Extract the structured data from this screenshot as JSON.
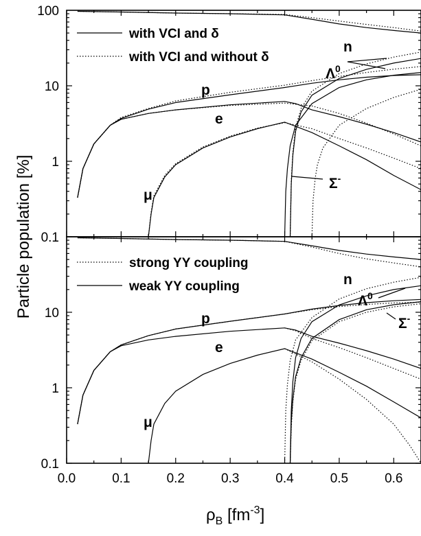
{
  "chart_data": [
    {
      "type": "line",
      "panel": "top",
      "title": "",
      "xlabel": "ρ_B [fm^-3]",
      "ylabel": "Particle population [%]",
      "xlim": [
        0.0,
        0.65
      ],
      "ylim": [
        0.1,
        100
      ],
      "yscale": "log",
      "legend_position": "top-left",
      "legend": [
        {
          "label": "with VCI and δ",
          "style": "solid"
        },
        {
          "label": "with VCI and without δ",
          "style": "dotted"
        }
      ],
      "annotations": {
        "n": "n",
        "lambda": "Λ",
        "lambda_sup": "0",
        "p": "p",
        "e": "e",
        "mu": "μ",
        "sigma": "Σ",
        "sigma_sup": "-"
      },
      "series": [
        {
          "name": "n",
          "style": "solid",
          "x": [
            0.02,
            0.1,
            0.2,
            0.3,
            0.4,
            0.45,
            0.5,
            0.55,
            0.6,
            0.65
          ],
          "y": [
            97,
            95,
            92,
            90,
            87,
            76,
            66,
            59,
            54,
            50
          ]
        },
        {
          "name": "n",
          "style": "dotted",
          "x": [
            0.02,
            0.1,
            0.2,
            0.3,
            0.4,
            0.45,
            0.5,
            0.55,
            0.6,
            0.65
          ],
          "y": [
            97,
            95,
            92,
            90,
            88,
            80,
            72,
            65,
            59,
            53
          ]
        },
        {
          "name": "p",
          "style": "solid",
          "x": [
            0.02,
            0.03,
            0.05,
            0.08,
            0.1,
            0.15,
            0.2,
            0.3,
            0.4,
            0.45,
            0.5,
            0.55,
            0.6,
            0.65
          ],
          "y": [
            0.33,
            0.8,
            1.7,
            3.0,
            3.7,
            4.9,
            6.0,
            7.6,
            9.5,
            10.8,
            12.0,
            13.0,
            13.7,
            14.0
          ]
        },
        {
          "name": "p",
          "style": "dotted",
          "x": [
            0.02,
            0.03,
            0.05,
            0.08,
            0.1,
            0.15,
            0.2,
            0.3,
            0.4,
            0.45,
            0.5,
            0.55,
            0.6,
            0.65
          ],
          "y": [
            0.33,
            0.8,
            1.7,
            3.0,
            3.8,
            5.0,
            6.3,
            8.2,
            10.2,
            11.7,
            13.3,
            15.0,
            16.6,
            18.0
          ]
        },
        {
          "name": "e",
          "style": "solid",
          "x": [
            0.02,
            0.03,
            0.05,
            0.08,
            0.1,
            0.15,
            0.2,
            0.3,
            0.4,
            0.42,
            0.45,
            0.5,
            0.55,
            0.6,
            0.65
          ],
          "y": [
            0.33,
            0.8,
            1.7,
            3.0,
            3.6,
            4.3,
            4.8,
            5.6,
            6.2,
            5.8,
            4.8,
            3.9,
            3.1,
            2.4,
            1.8
          ]
        },
        {
          "name": "e",
          "style": "dotted",
          "x": [
            0.02,
            0.03,
            0.05,
            0.08,
            0.1,
            0.15,
            0.2,
            0.3,
            0.4,
            0.45,
            0.5,
            0.55,
            0.6,
            0.65
          ],
          "y": [
            0.33,
            0.8,
            1.7,
            3.0,
            3.6,
            4.3,
            4.8,
            5.5,
            5.9,
            5.4,
            4.3,
            3.2,
            2.3,
            1.6
          ]
        },
        {
          "name": "μ",
          "style": "solid",
          "x": [
            0.15,
            0.155,
            0.16,
            0.18,
            0.2,
            0.25,
            0.3,
            0.35,
            0.4,
            0.45,
            0.5,
            0.55,
            0.6,
            0.65
          ],
          "y": [
            0.1,
            0.2,
            0.33,
            0.62,
            0.9,
            1.5,
            2.1,
            2.7,
            3.3,
            2.4,
            1.6,
            1.05,
            0.65,
            0.42
          ]
        },
        {
          "name": "μ",
          "style": "dotted",
          "x": [
            0.15,
            0.155,
            0.16,
            0.18,
            0.2,
            0.25,
            0.3,
            0.35,
            0.4,
            0.45,
            0.5,
            0.55,
            0.6,
            0.65
          ],
          "y": [
            0.1,
            0.21,
            0.35,
            0.65,
            0.93,
            1.55,
            2.15,
            2.75,
            3.25,
            2.7,
            2.0,
            1.5,
            1.1,
            0.8
          ]
        },
        {
          "name": "Λ0",
          "style": "solid",
          "x": [
            0.41,
            0.412,
            0.415,
            0.42,
            0.43,
            0.45,
            0.5,
            0.55,
            0.6,
            0.65
          ],
          "y": [
            0.1,
            0.5,
            1.2,
            2.5,
            4.5,
            7.5,
            12.5,
            16.5,
            20.0,
            23.0
          ]
        },
        {
          "name": "Λ0",
          "style": "dotted",
          "x": [
            0.41,
            0.412,
            0.415,
            0.42,
            0.43,
            0.45,
            0.5,
            0.55,
            0.6,
            0.65
          ],
          "y": [
            0.1,
            0.55,
            1.3,
            2.8,
            5.0,
            8.5,
            14.5,
            19.5,
            24.0,
            28.0
          ]
        },
        {
          "name": "Σ-",
          "style": "solid",
          "x": [
            0.4,
            0.402,
            0.405,
            0.41,
            0.42,
            0.45,
            0.5,
            0.55,
            0.6,
            0.65
          ],
          "y": [
            0.1,
            0.4,
            0.8,
            1.6,
            3.0,
            5.8,
            9.5,
            12.0,
            13.8,
            15.0
          ]
        },
        {
          "name": "Σ-",
          "style": "dotted",
          "x": [
            0.45,
            0.452,
            0.456,
            0.46,
            0.47,
            0.5,
            0.55,
            0.6,
            0.65
          ],
          "y": [
            0.1,
            0.3,
            0.6,
            0.9,
            1.5,
            3.0,
            5.0,
            7.0,
            9.0
          ]
        }
      ]
    },
    {
      "type": "line",
      "panel": "bottom",
      "title": "",
      "xlabel": "ρ_B [fm^-3]",
      "ylabel": "Particle population [%]",
      "xlim": [
        0.0,
        0.65
      ],
      "ylim": [
        0.1,
        100
      ],
      "yscale": "log",
      "legend_position": "top-left",
      "legend": [
        {
          "label": "strong YY coupling",
          "style": "dotted"
        },
        {
          "label": "weak YY coupling",
          "style": "solid"
        }
      ],
      "annotations": {
        "n": "n",
        "lambda": "Λ",
        "lambda_sup": "0",
        "p": "p",
        "e": "e",
        "mu": "μ",
        "sigma": "Σ",
        "sigma_sup": "-"
      },
      "series": [
        {
          "name": "n",
          "style": "solid",
          "x": [
            0.02,
            0.1,
            0.2,
            0.3,
            0.4,
            0.45,
            0.5,
            0.55,
            0.6,
            0.65
          ],
          "y": [
            97,
            95,
            92,
            90,
            87,
            76,
            66,
            59,
            54,
            50
          ]
        },
        {
          "name": "n",
          "style": "dotted",
          "x": [
            0.02,
            0.1,
            0.2,
            0.3,
            0.4,
            0.45,
            0.5,
            0.55,
            0.6,
            0.65
          ],
          "y": [
            97,
            95,
            92,
            90,
            87,
            73,
            60,
            51,
            45,
            40
          ]
        },
        {
          "name": "p",
          "style": "solid",
          "x": [
            0.02,
            0.03,
            0.05,
            0.08,
            0.1,
            0.15,
            0.2,
            0.3,
            0.4,
            0.45,
            0.5,
            0.55,
            0.6,
            0.65
          ],
          "y": [
            0.33,
            0.8,
            1.7,
            3.0,
            3.7,
            4.9,
            6.0,
            7.6,
            9.5,
            11.0,
            12.3,
            13.4,
            14.2,
            14.8
          ]
        },
        {
          "name": "p",
          "style": "dotted",
          "x": [
            0.02,
            0.03,
            0.05,
            0.08,
            0.1,
            0.15,
            0.2,
            0.3,
            0.4,
            0.45,
            0.5,
            0.55,
            0.6,
            0.65
          ],
          "y": [
            0.33,
            0.8,
            1.7,
            3.0,
            3.7,
            4.9,
            6.0,
            7.6,
            9.5,
            10.8,
            11.9,
            12.7,
            13.3,
            13.6
          ]
        },
        {
          "name": "e",
          "style": "solid",
          "x": [
            0.02,
            0.03,
            0.05,
            0.08,
            0.1,
            0.15,
            0.2,
            0.3,
            0.4,
            0.42,
            0.45,
            0.5,
            0.55,
            0.6,
            0.65
          ],
          "y": [
            0.33,
            0.8,
            1.7,
            3.0,
            3.6,
            4.3,
            4.8,
            5.6,
            6.2,
            5.8,
            4.8,
            3.9,
            3.1,
            2.4,
            1.8
          ]
        },
        {
          "name": "e",
          "style": "dotted",
          "x": [
            0.4,
            0.42,
            0.45,
            0.5,
            0.55,
            0.6,
            0.65
          ],
          "y": [
            6.2,
            5.7,
            4.5,
            3.4,
            2.5,
            1.8,
            1.3
          ]
        },
        {
          "name": "μ",
          "style": "solid",
          "x": [
            0.15,
            0.155,
            0.16,
            0.18,
            0.2,
            0.25,
            0.3,
            0.35,
            0.4,
            0.45,
            0.5,
            0.55,
            0.6,
            0.65
          ],
          "y": [
            0.1,
            0.2,
            0.33,
            0.62,
            0.9,
            1.5,
            2.1,
            2.7,
            3.3,
            2.4,
            1.6,
            1.05,
            0.65,
            0.4
          ]
        },
        {
          "name": "μ",
          "style": "dotted",
          "x": [
            0.4,
            0.45,
            0.5,
            0.55,
            0.6,
            0.63,
            0.65
          ],
          "y": [
            3.3,
            2.2,
            1.3,
            0.7,
            0.33,
            0.17,
            0.1
          ]
        },
        {
          "name": "Λ0",
          "style": "solid",
          "x": [
            0.41,
            0.412,
            0.415,
            0.42,
            0.43,
            0.45,
            0.5,
            0.55,
            0.6,
            0.65
          ],
          "y": [
            0.1,
            0.5,
            1.2,
            2.5,
            4.5,
            7.5,
            12.5,
            16.5,
            20.0,
            22.5
          ]
        },
        {
          "name": "Λ0",
          "style": "dotted",
          "x": [
            0.4,
            0.402,
            0.405,
            0.41,
            0.42,
            0.45,
            0.5,
            0.55,
            0.6,
            0.65
          ],
          "y": [
            0.1,
            0.5,
            1.1,
            2.3,
            4.3,
            8.5,
            15.0,
            20.5,
            25.0,
            29.0
          ]
        },
        {
          "name": "Σ-",
          "style": "solid",
          "x": [
            0.41,
            0.412,
            0.415,
            0.42,
            0.43,
            0.45,
            0.5,
            0.55,
            0.6,
            0.65
          ],
          "y": [
            0.1,
            0.35,
            0.7,
            1.4,
            2.5,
            4.5,
            8.0,
            10.8,
            12.6,
            13.8
          ]
        },
        {
          "name": "Σ-",
          "style": "dotted",
          "x": [
            0.41,
            0.412,
            0.415,
            0.42,
            0.43,
            0.45,
            0.5,
            0.55,
            0.6,
            0.65
          ],
          "y": [
            0.1,
            0.3,
            0.65,
            1.3,
            2.3,
            4.2,
            7.5,
            10.0,
            11.8,
            13.0
          ]
        }
      ]
    }
  ],
  "axes": {
    "xticks": [
      "0.0",
      "0.1",
      "0.2",
      "0.3",
      "0.4",
      "0.5",
      "0.6"
    ],
    "yticks_top": [
      "100",
      "10",
      "1",
      "0.1"
    ],
    "yticks_bottom": [
      "10",
      "1",
      "0.1"
    ]
  },
  "labels": {
    "ylabel": "Particle population [%]",
    "xlabel_rho": "ρ",
    "xlabel_sub": "B",
    "xlabel_unit": " [fm",
    "xlabel_sup": "-3",
    "xlabel_close": "]",
    "legend_top_1": "with VCI and δ",
    "legend_top_2": "with VCI and without δ",
    "legend_bot_1": "strong YY coupling",
    "legend_bot_2": "weak YY coupling"
  }
}
